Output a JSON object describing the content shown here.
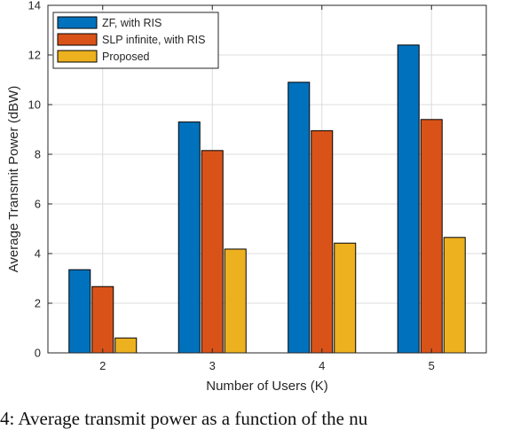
{
  "chart_data": {
    "type": "bar",
    "categories": [
      "2",
      "3",
      "4",
      "5"
    ],
    "series": [
      {
        "name": "ZF, with RIS",
        "values": [
          3.35,
          9.3,
          10.9,
          12.4
        ],
        "color": "#0072BD"
      },
      {
        "name": "SLP infinite, with RIS",
        "values": [
          2.67,
          8.15,
          8.95,
          9.4
        ],
        "color": "#D95319"
      },
      {
        "name": "Proposed",
        "values": [
          0.6,
          4.18,
          4.42,
          4.65
        ],
        "color": "#EDB120"
      }
    ],
    "xlabel": "Number of Users (K)",
    "ylabel": "Average Transmit Power (dBW)",
    "ylim": [
      0,
      14
    ],
    "yticks": [
      0,
      2,
      4,
      6,
      8,
      10,
      12,
      14
    ],
    "grid": true,
    "legend_position": "top-left"
  },
  "caption_text": "4: Average transmit power as a function of the nu"
}
